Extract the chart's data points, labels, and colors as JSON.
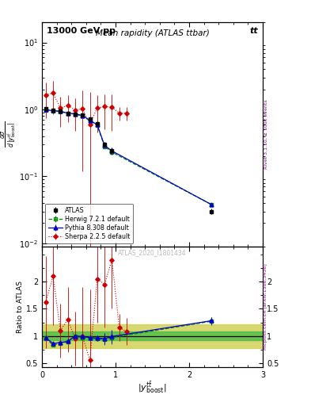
{
  "title_top": "13000 GeV pp",
  "title_right": "tt",
  "plot_title": "Mean rapidity (ATLAS ttbar)",
  "watermark": "ATLAS_2020_I1801434",
  "atlas_x": [
    0.05,
    0.15,
    0.25,
    0.35,
    0.45,
    0.55,
    0.65,
    0.75,
    0.85,
    0.95,
    2.3
  ],
  "atlas_y": [
    1.02,
    0.97,
    0.95,
    0.88,
    0.86,
    0.82,
    0.72,
    0.62,
    0.3,
    0.24,
    0.03
  ],
  "atlas_yerr": [
    0.03,
    0.03,
    0.03,
    0.03,
    0.03,
    0.03,
    0.04,
    0.04,
    0.03,
    0.03,
    0.003
  ],
  "herwig_x": [
    0.05,
    0.15,
    0.25,
    0.35,
    0.45,
    0.55,
    0.65,
    0.75,
    0.85,
    0.95,
    2.3
  ],
  "herwig_y": [
    0.98,
    0.95,
    0.93,
    0.87,
    0.85,
    0.8,
    0.68,
    0.58,
    0.28,
    0.23,
    0.038
  ],
  "herwig_yerr": [
    0.005,
    0.005,
    0.005,
    0.005,
    0.005,
    0.005,
    0.005,
    0.005,
    0.005,
    0.005,
    0.001
  ],
  "pythia_x": [
    0.05,
    0.15,
    0.25,
    0.35,
    0.45,
    0.55,
    0.65,
    0.75,
    0.85,
    0.95,
    2.3
  ],
  "pythia_y": [
    0.99,
    0.96,
    0.94,
    0.88,
    0.86,
    0.81,
    0.69,
    0.59,
    0.29,
    0.24,
    0.038
  ],
  "pythia_yerr": [
    0.005,
    0.005,
    0.005,
    0.005,
    0.005,
    0.005,
    0.005,
    0.005,
    0.005,
    0.005,
    0.001
  ],
  "sherpa_x": [
    0.05,
    0.15,
    0.25,
    0.35,
    0.45,
    0.55,
    0.65,
    0.75,
    0.85,
    0.95,
    1.05,
    1.15
  ],
  "sherpa_y": [
    1.65,
    1.75,
    1.05,
    1.15,
    0.98,
    1.02,
    0.6,
    1.05,
    1.1,
    1.08,
    0.88,
    0.88
  ],
  "sherpa_yerr": [
    0.9,
    0.9,
    0.5,
    0.5,
    0.5,
    0.9,
    1.2,
    0.6,
    0.6,
    0.6,
    0.2,
    0.2
  ],
  "ratio_band_outer_lo": 0.78,
  "ratio_band_outer_hi": 1.22,
  "ratio_band_inner_lo": 0.92,
  "ratio_band_inner_hi": 1.08,
  "herwig_ratio_x": [
    0.05,
    0.15,
    0.25,
    0.35,
    0.45,
    0.55,
    0.65,
    0.75,
    0.85,
    0.95,
    2.3
  ],
  "herwig_ratio_y": [
    0.96,
    0.83,
    0.87,
    0.89,
    0.99,
    0.97,
    0.96,
    0.95,
    0.94,
    0.97,
    1.27
  ],
  "herwig_ratio_yerr": [
    0.03,
    0.03,
    0.03,
    0.03,
    0.03,
    0.03,
    0.05,
    0.05,
    0.1,
    0.12,
    0.07
  ],
  "pythia_ratio_x": [
    0.05,
    0.15,
    0.25,
    0.35,
    0.45,
    0.55,
    0.65,
    0.75,
    0.85,
    0.95,
    2.3
  ],
  "pythia_ratio_y": [
    0.97,
    0.86,
    0.88,
    0.9,
    1.0,
    0.99,
    0.97,
    0.96,
    0.95,
    0.99,
    1.28
  ],
  "pythia_ratio_yerr": [
    0.03,
    0.03,
    0.03,
    0.03,
    0.03,
    0.03,
    0.04,
    0.05,
    0.1,
    0.12,
    0.06
  ],
  "sherpa_ratio_x": [
    0.05,
    0.15,
    0.25,
    0.35,
    0.45,
    0.55,
    0.65,
    0.75,
    0.85,
    0.95,
    1.05,
    1.15
  ],
  "sherpa_ratio_y": [
    1.62,
    2.1,
    1.1,
    1.3,
    0.95,
    1.0,
    0.55,
    2.05,
    1.95,
    2.4,
    1.15,
    1.08
  ],
  "sherpa_ratio_yerr": [
    0.85,
    0.9,
    0.5,
    0.6,
    0.5,
    0.9,
    1.3,
    0.8,
    0.8,
    0.9,
    0.25,
    0.25
  ],
  "ylim_main": [
    0.009,
    20
  ],
  "ylim_ratio": [
    0.42,
    2.65
  ],
  "xlim": [
    0,
    3
  ],
  "color_atlas": "#000000",
  "color_herwig": "#008800",
  "color_pythia": "#0000cc",
  "color_sherpa": "#cc0000",
  "color_band_inner": "#44bb44",
  "color_band_outer": "#cccc44"
}
